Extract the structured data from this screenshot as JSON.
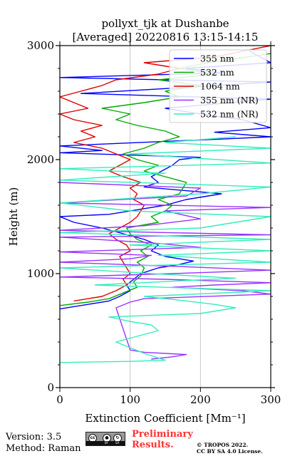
{
  "chart_data": {
    "type": "line",
    "title": "pollyxt_tjk at Dushanbe",
    "subtitle": "[Averaged] 20220816 13:15-14:15",
    "xlabel": "Extinction Coefficient [Mm⁻¹]",
    "ylabel": "Height (m)",
    "xlim": [
      0,
      300
    ],
    "ylim": [
      0,
      3000
    ],
    "xticks": [
      "0",
      "100",
      "200",
      "300"
    ],
    "yticks": [
      "0",
      "1000",
      "2000",
      "3000"
    ],
    "grid": "x",
    "legend_position": "top-right",
    "series": [
      {
        "name": "355 nm",
        "color": "#0000ff",
        "points": [
          [
            0,
            690
          ],
          [
            40,
            730
          ],
          [
            70,
            760
          ],
          [
            85,
            800
          ],
          [
            100,
            850
          ],
          [
            95,
            900
          ],
          [
            105,
            950
          ],
          [
            115,
            1000
          ],
          [
            140,
            1050
          ],
          [
            170,
            1080
          ],
          [
            190,
            1110
          ],
          [
            150,
            1150
          ],
          [
            130,
            1200
          ],
          [
            140,
            1250
          ],
          [
            120,
            1300
          ],
          [
            90,
            1350
          ],
          [
            60,
            1400
          ],
          [
            20,
            1450
          ],
          [
            0,
            1500
          ],
          [
            70,
            1520
          ],
          [
            110,
            1560
          ],
          [
            150,
            1600
          ],
          [
            180,
            1650
          ],
          [
            230,
            1700
          ],
          [
            120,
            1760
          ],
          [
            140,
            1800
          ],
          [
            130,
            1850
          ],
          [
            145,
            1900
          ],
          [
            160,
            1950
          ],
          [
            170,
            2000
          ],
          [
            200,
            2020
          ],
          [
            0,
            2060
          ],
          [
            60,
            2080
          ],
          [
            0,
            2120
          ],
          [
            150,
            2160
          ],
          [
            230,
            2180
          ],
          [
            300,
            2200
          ],
          [
            220,
            2240
          ],
          [
            300,
            2280
          ],
          [
            260,
            2350
          ],
          [
            200,
            2400
          ],
          [
            150,
            2450
          ],
          [
            300,
            2530
          ],
          [
            30,
            2580
          ],
          [
            170,
            2630
          ],
          [
            300,
            2680
          ],
          [
            0,
            2720
          ],
          [
            230,
            2760
          ],
          [
            180,
            2800
          ],
          [
            300,
            2850
          ],
          [
            270,
            2950
          ]
        ]
      },
      {
        "name": "532 nm",
        "color": "#00aa00",
        "points": [
          [
            0,
            720
          ],
          [
            40,
            750
          ],
          [
            70,
            780
          ],
          [
            90,
            830
          ],
          [
            110,
            880
          ],
          [
            105,
            930
          ],
          [
            115,
            980
          ],
          [
            120,
            1050
          ],
          [
            110,
            1100
          ],
          [
            125,
            1150
          ],
          [
            115,
            1200
          ],
          [
            130,
            1250
          ],
          [
            110,
            1300
          ],
          [
            100,
            1350
          ],
          [
            95,
            1400
          ],
          [
            140,
            1450
          ],
          [
            130,
            1500
          ],
          [
            150,
            1550
          ],
          [
            160,
            1600
          ],
          [
            140,
            1650
          ],
          [
            170,
            1700
          ],
          [
            180,
            1800
          ],
          [
            150,
            1850
          ],
          [
            120,
            1900
          ],
          [
            140,
            1950
          ],
          [
            110,
            2000
          ],
          [
            90,
            2050
          ],
          [
            120,
            2100
          ],
          [
            140,
            2150
          ],
          [
            170,
            2200
          ],
          [
            150,
            2250
          ],
          [
            110,
            2300
          ],
          [
            80,
            2350
          ],
          [
            100,
            2400
          ],
          [
            60,
            2450
          ],
          [
            120,
            2500
          ],
          [
            170,
            2550
          ],
          [
            150,
            2600
          ],
          [
            200,
            2650
          ],
          [
            140,
            2700
          ],
          [
            220,
            2750
          ],
          [
            170,
            2800
          ],
          [
            210,
            2850
          ],
          [
            300,
            2930
          ]
        ]
      },
      {
        "name": "1064 nm",
        "color": "#dd0000",
        "points": [
          [
            20,
            760
          ],
          [
            60,
            800
          ],
          [
            80,
            850
          ],
          [
            95,
            900
          ],
          [
            90,
            950
          ],
          [
            100,
            1000
          ],
          [
            95,
            1050
          ],
          [
            90,
            1100
          ],
          [
            85,
            1150
          ],
          [
            100,
            1200
          ],
          [
            95,
            1250
          ],
          [
            80,
            1300
          ],
          [
            70,
            1350
          ],
          [
            85,
            1400
          ],
          [
            100,
            1450
          ],
          [
            110,
            1500
          ],
          [
            115,
            1550
          ],
          [
            120,
            1600
          ],
          [
            105,
            1650
          ],
          [
            110,
            1700
          ],
          [
            100,
            1750
          ],
          [
            115,
            1800
          ],
          [
            90,
            1850
          ],
          [
            70,
            1900
          ],
          [
            85,
            1950
          ],
          [
            100,
            2000
          ],
          [
            80,
            2050
          ],
          [
            60,
            2100
          ],
          [
            20,
            2150
          ],
          [
            50,
            2200
          ],
          [
            30,
            2250
          ],
          [
            60,
            2300
          ],
          [
            20,
            2350
          ],
          [
            0,
            2400
          ],
          [
            40,
            2450
          ],
          [
            20,
            2500
          ],
          [
            0,
            2550
          ],
          [
            30,
            2600
          ],
          [
            60,
            2650
          ],
          [
            80,
            2700
          ],
          [
            140,
            2750
          ],
          [
            170,
            2800
          ],
          [
            120,
            2850
          ],
          [
            220,
            2900
          ],
          [
            260,
            2950
          ],
          [
            300,
            3000
          ]
        ]
      },
      {
        "name": "355 nm (NR)",
        "color": "#9933ff",
        "points": [
          [
            130,
            250
          ],
          [
            160,
            270
          ],
          [
            180,
            290
          ],
          [
            120,
            310
          ],
          [
            100,
            330
          ],
          [
            80,
            700
          ],
          [
            100,
            750
          ],
          [
            120,
            780
          ],
          [
            300,
            820
          ],
          [
            260,
            850
          ],
          [
            160,
            880
          ],
          [
            220,
            900
          ],
          [
            300,
            920
          ],
          [
            150,
            950
          ],
          [
            0,
            970
          ],
          [
            160,
            1000
          ],
          [
            300,
            1030
          ],
          [
            180,
            1060
          ],
          [
            0,
            1100
          ],
          [
            100,
            1130
          ],
          [
            130,
            1160
          ],
          [
            0,
            1190
          ],
          [
            200,
            1230
          ],
          [
            130,
            1270
          ],
          [
            0,
            1320
          ],
          [
            300,
            1340
          ],
          [
            0,
            1380
          ],
          [
            120,
            1420
          ],
          [
            200,
            1480
          ],
          [
            150,
            1550
          ],
          [
            300,
            1580
          ],
          [
            0,
            1620
          ],
          [
            180,
            1680
          ],
          [
            200,
            1750
          ],
          [
            0,
            1800
          ]
        ]
      },
      {
        "name": "532 nm (NR)",
        "color": "#33eebb",
        "points": [
          [
            0,
            220
          ],
          [
            100,
            230
          ],
          [
            150,
            240
          ],
          [
            120,
            300
          ],
          [
            100,
            350
          ],
          [
            80,
            400
          ],
          [
            110,
            450
          ],
          [
            140,
            500
          ],
          [
            130,
            550
          ],
          [
            100,
            580
          ],
          [
            70,
            620
          ],
          [
            200,
            650
          ],
          [
            250,
            700
          ],
          [
            220,
            730
          ],
          [
            180,
            760
          ],
          [
            120,
            800
          ],
          [
            300,
            850
          ],
          [
            50,
            900
          ],
          [
            250,
            960
          ],
          [
            130,
            1000
          ],
          [
            0,
            1050
          ],
          [
            300,
            1100
          ],
          [
            140,
            1160
          ],
          [
            300,
            1200
          ],
          [
            100,
            1250
          ],
          [
            300,
            1300
          ],
          [
            0,
            1360
          ],
          [
            200,
            1400
          ],
          [
            300,
            1500
          ],
          [
            100,
            1550
          ],
          [
            0,
            1620
          ],
          [
            200,
            1700
          ],
          [
            300,
            1760
          ],
          [
            0,
            1820
          ],
          [
            150,
            1880
          ],
          [
            0,
            1920
          ],
          [
            300,
            1970
          ],
          [
            100,
            2050
          ],
          [
            300,
            2100
          ],
          [
            150,
            2150
          ],
          [
            250,
            2200
          ]
        ]
      }
    ]
  },
  "footer": {
    "version": "Version: 3.5",
    "method": "Method: Raman",
    "preliminary_line1": "Preliminary",
    "preliminary_line2": "Results.",
    "copyright_line1": "© TROPOS 2022.",
    "copyright_line2": "CC BY SA 4.0 License.",
    "cc_label": "cc",
    "by_label": "BY",
    "sa_label": "SA"
  }
}
